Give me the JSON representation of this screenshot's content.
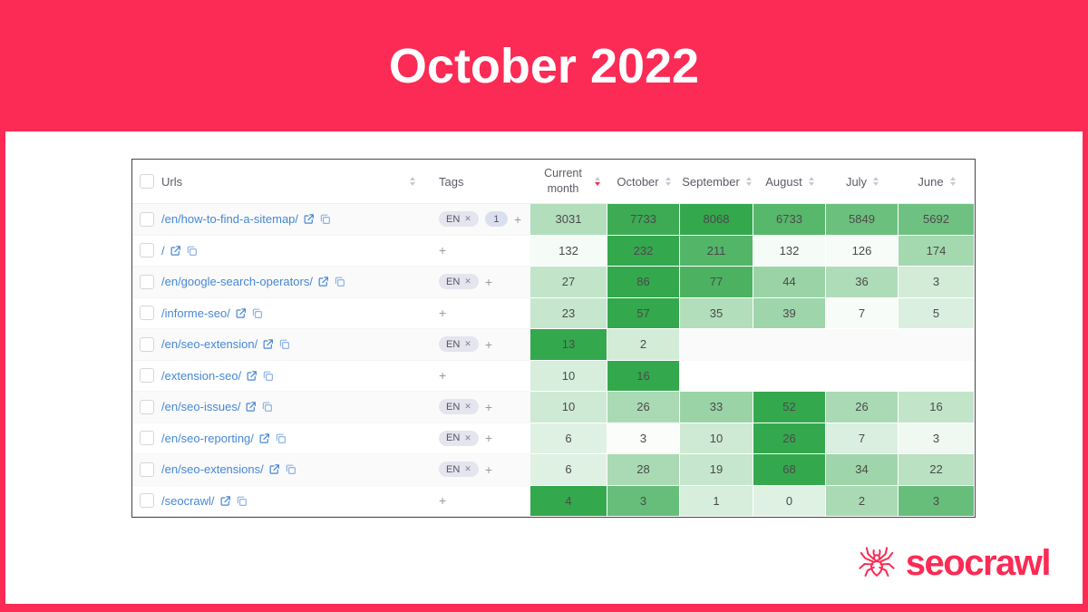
{
  "slide": {
    "title": "October 2022",
    "brand": "seocrawl",
    "colors": {
      "accent": "#fb2b55",
      "heat_max": "#34a84d",
      "link_blue": "#4687d6"
    }
  },
  "table": {
    "columns": [
      {
        "key": "select",
        "type": "checkbox"
      },
      {
        "key": "urls",
        "label": "Urls",
        "sortable": true
      },
      {
        "key": "tags",
        "label": "Tags",
        "sortable": false
      },
      {
        "key": "current_month",
        "label": "Current month",
        "sortable": true,
        "sorted": "desc"
      },
      {
        "key": "october",
        "label": "October",
        "sortable": true
      },
      {
        "key": "september",
        "label": "September",
        "sortable": true
      },
      {
        "key": "august",
        "label": "August",
        "sortable": true
      },
      {
        "key": "july",
        "label": "July",
        "sortable": true
      },
      {
        "key": "june",
        "label": "June",
        "sortable": true
      }
    ],
    "add_tag_label": "+",
    "tag_remove_glyph": "✕",
    "rows": [
      {
        "url": "/en/how-to-find-a-sitemap/",
        "tags": [
          "EN"
        ],
        "count_tag": "1",
        "cells": [
          {
            "v": "3031",
            "c": "#b2debb"
          },
          {
            "v": "7733",
            "c": "#3cab54"
          },
          {
            "v": "8068",
            "c": "#34a84d"
          },
          {
            "v": "6733",
            "c": "#57b76b"
          },
          {
            "v": "5849",
            "c": "#6cc07e"
          },
          {
            "v": "5692",
            "c": "#6fc181"
          }
        ]
      },
      {
        "url": "/",
        "tags": [],
        "cells": [
          {
            "v": "132",
            "c": "#f5fbf6"
          },
          {
            "v": "232",
            "c": "#34a84d"
          },
          {
            "v": "211",
            "c": "#52b568"
          },
          {
            "v": "132",
            "c": "#f5fbf6"
          },
          {
            "v": "126",
            "c": "#f7fcf8"
          },
          {
            "v": "174",
            "c": "#a4d8af"
          }
        ]
      },
      {
        "url": "/en/google-search-operators/",
        "tags": [
          "EN"
        ],
        "cells": [
          {
            "v": "27",
            "c": "#c2e5ca"
          },
          {
            "v": "86",
            "c": "#34a84d"
          },
          {
            "v": "77",
            "c": "#4cb262"
          },
          {
            "v": "44",
            "c": "#9ad4a6"
          },
          {
            "v": "36",
            "c": "#aedcb8"
          },
          {
            "v": "3",
            "c": "#d2ecd8"
          }
        ]
      },
      {
        "url": "/informe-seo/",
        "tags": [],
        "cells": [
          {
            "v": "23",
            "c": "#c6e7cd"
          },
          {
            "v": "57",
            "c": "#34a84d"
          },
          {
            "v": "35",
            "c": "#b2debb"
          },
          {
            "v": "39",
            "c": "#9ed5aa"
          },
          {
            "v": "7",
            "c": "#f7fcf8"
          },
          {
            "v": "5",
            "c": "#daefdf"
          }
        ]
      },
      {
        "url": "/en/seo-extension/",
        "tags": [
          "EN"
        ],
        "cells": [
          {
            "v": "13",
            "c": "#34a84d"
          },
          {
            "v": "2",
            "c": "#d2ecd8"
          },
          {
            "v": "",
            "c": ""
          },
          {
            "v": "",
            "c": ""
          },
          {
            "v": "",
            "c": ""
          },
          {
            "v": "",
            "c": ""
          }
        ]
      },
      {
        "url": "/extension-seo/",
        "tags": [],
        "cells": [
          {
            "v": "10",
            "c": "#d6eedb"
          },
          {
            "v": "16",
            "c": "#34a84d"
          },
          {
            "v": "",
            "c": ""
          },
          {
            "v": "",
            "c": ""
          },
          {
            "v": "",
            "c": ""
          },
          {
            "v": "",
            "c": ""
          }
        ]
      },
      {
        "url": "/en/seo-issues/",
        "tags": [
          "EN"
        ],
        "cells": [
          {
            "v": "10",
            "c": "#ceead4"
          },
          {
            "v": "26",
            "c": "#aadab4"
          },
          {
            "v": "33",
            "c": "#9ad4a6"
          },
          {
            "v": "52",
            "c": "#34a84d"
          },
          {
            "v": "26",
            "c": "#aadab4"
          },
          {
            "v": "16",
            "c": "#c2e5ca"
          }
        ]
      },
      {
        "url": "/en/seo-reporting/",
        "tags": [
          "EN"
        ],
        "cells": [
          {
            "v": "6",
            "c": "#dff1e3"
          },
          {
            "v": "3",
            "c": "#fbfdfb"
          },
          {
            "v": "10",
            "c": "#ceead4"
          },
          {
            "v": "26",
            "c": "#34a84d"
          },
          {
            "v": "7",
            "c": "#daefdf"
          },
          {
            "v": "3",
            "c": "#eff8f1"
          }
        ]
      },
      {
        "url": "/en/seo-extensions/",
        "tags": [
          "EN"
        ],
        "cells": [
          {
            "v": "6",
            "c": "#dff1e3"
          },
          {
            "v": "28",
            "c": "#aadab4"
          },
          {
            "v": "19",
            "c": "#c6e7cd"
          },
          {
            "v": "68",
            "c": "#34a84d"
          },
          {
            "v": "34",
            "c": "#9ed5aa"
          },
          {
            "v": "22",
            "c": "#bae1c2"
          }
        ]
      },
      {
        "url": "/seocrawl/",
        "tags": [],
        "cells": [
          {
            "v": "4",
            "c": "#34a84d"
          },
          {
            "v": "3",
            "c": "#67be7a"
          },
          {
            "v": "1",
            "c": "#d6eedb"
          },
          {
            "v": "0",
            "c": "#dff1e3"
          },
          {
            "v": "2",
            "c": "#aadab4"
          },
          {
            "v": "3",
            "c": "#67be7a"
          }
        ]
      }
    ]
  }
}
